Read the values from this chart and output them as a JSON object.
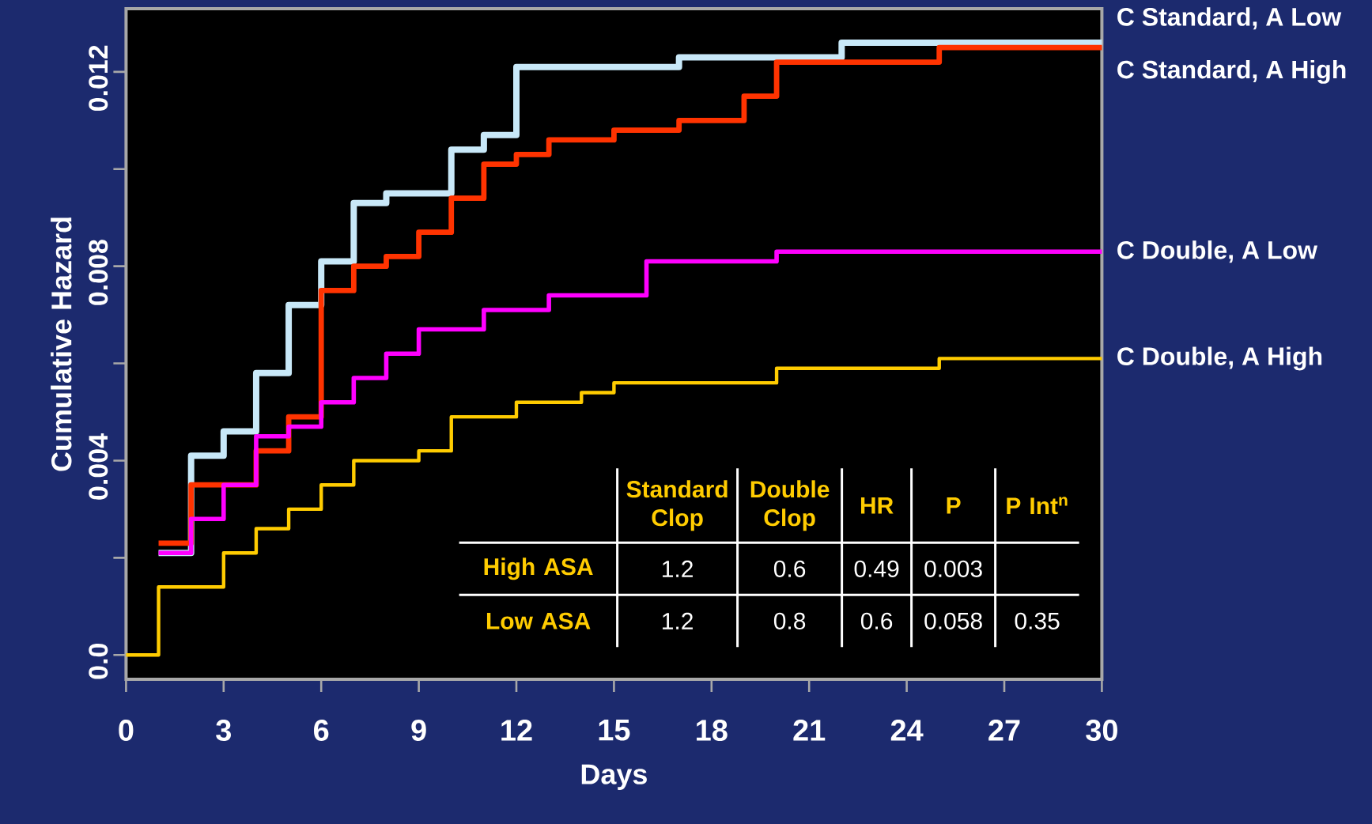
{
  "chart_data": {
    "type": "step",
    "xlabel": "Days",
    "ylabel": "Cumulative Hazard",
    "xlim": [
      0,
      30
    ],
    "ylim": [
      -0.0005,
      0.0133
    ],
    "xticks": [
      0,
      3,
      6,
      9,
      12,
      15,
      18,
      21,
      24,
      27,
      30
    ],
    "yticks": [
      {
        "value": 0,
        "label": "0.0"
      },
      {
        "value": 0.002,
        "label": null
      },
      0.004,
      {
        "value": 0.006,
        "label": null
      },
      0.008,
      {
        "value": 0.01,
        "label": null
      },
      0.012
    ],
    "line_style": "solid",
    "marker": "none",
    "series": [
      {
        "name": "C Standard, A Low",
        "color": "#c8e8f8",
        "x": [
          1,
          2,
          3,
          4,
          5,
          6,
          7,
          8,
          10,
          11,
          12,
          17,
          22,
          30
        ],
        "values": [
          0.0021,
          0.0041,
          0.0046,
          0.0058,
          0.0072,
          0.0081,
          0.0093,
          0.0095,
          0.0104,
          0.0107,
          0.0121,
          0.0123,
          0.0126,
          0.0126
        ]
      },
      {
        "name": "C Standard, A High",
        "color": "#ff3300",
        "x": [
          1,
          2,
          4,
          5,
          6,
          7,
          8,
          9,
          10,
          11,
          12,
          13,
          15,
          17,
          19,
          20,
          25,
          30
        ],
        "values": [
          0.0023,
          0.0035,
          0.0042,
          0.0049,
          0.0075,
          0.008,
          0.0082,
          0.0087,
          0.0094,
          0.0101,
          0.0103,
          0.0106,
          0.0108,
          0.011,
          0.0115,
          0.0122,
          0.0125,
          0.0125
        ]
      },
      {
        "name": "C Double, A Low",
        "color": "#ff00ff",
        "x": [
          1,
          2,
          3,
          4,
          5,
          6,
          7,
          8,
          9,
          11,
          13,
          16,
          20,
          30
        ],
        "values": [
          0.0021,
          0.0028,
          0.0035,
          0.0045,
          0.0047,
          0.0052,
          0.0057,
          0.0062,
          0.0067,
          0.0071,
          0.0074,
          0.0081,
          0.0083,
          0.0083
        ]
      },
      {
        "name": "C Double, A High",
        "color": "#ffcc00",
        "x": [
          0,
          1,
          3,
          4,
          5,
          6,
          7,
          9,
          10,
          12,
          14,
          15,
          20,
          25,
          30
        ],
        "values": [
          0,
          0.0014,
          0.0021,
          0.0026,
          0.003,
          0.0035,
          0.004,
          0.0042,
          0.0049,
          0.0052,
          0.0054,
          0.0056,
          0.0059,
          0.0061,
          0.0061
        ]
      }
    ],
    "annotations": [
      "Standard Clop",
      "Double Clop",
      "HR",
      "P",
      "P Int$^{n}$",
      "High ASA",
      "1.2",
      "0.6",
      "0.49",
      "0.003",
      "Low ASA",
      "1.2",
      "0.8",
      "0.6",
      "0.058",
      "0.35"
    ]
  }
}
